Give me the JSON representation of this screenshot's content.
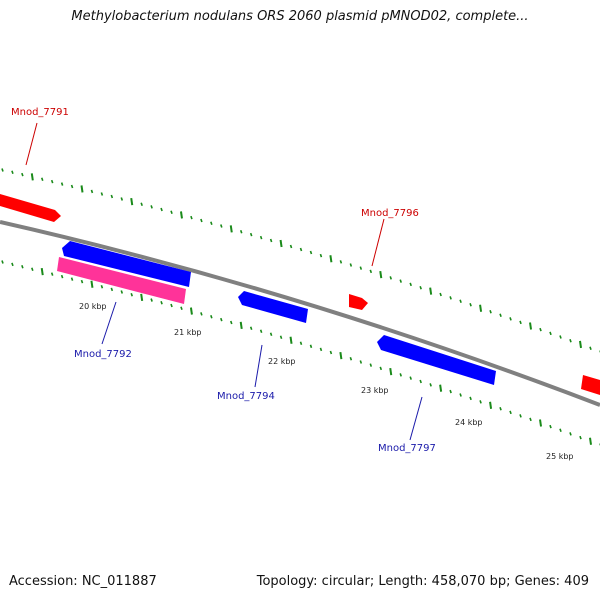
{
  "title": "Methylobacterium nodulans ORS 2060 plasmid pMNOD02, complete...",
  "footer": {
    "accession": "Accession: NC_011887",
    "summary": "Topology: circular; Length: 458,070 bp; Genes: 409"
  },
  "colors": {
    "forward_gene": "#ff0000",
    "reverse_gene": "#0000ff",
    "rna_gene": "#ff3399",
    "forward_label": "#cc0000",
    "reverse_label": "#1a1aaa",
    "backbone": "#808080",
    "tick": "#1a8a1a"
  },
  "scale_labels": [
    "20 kbp",
    "21 kbp",
    "22 kbp",
    "23 kbp",
    "24 kbp",
    "25 kbp"
  ],
  "genes": [
    {
      "name": "Mnod_7791",
      "strand": "forward"
    },
    {
      "name": "Mnod_7792",
      "strand": "reverse"
    },
    {
      "name": "Mnod_7794",
      "strand": "reverse"
    },
    {
      "name": "Mnod_7796",
      "strand": "forward"
    },
    {
      "name": "Mnod_7797",
      "strand": "reverse"
    }
  ]
}
